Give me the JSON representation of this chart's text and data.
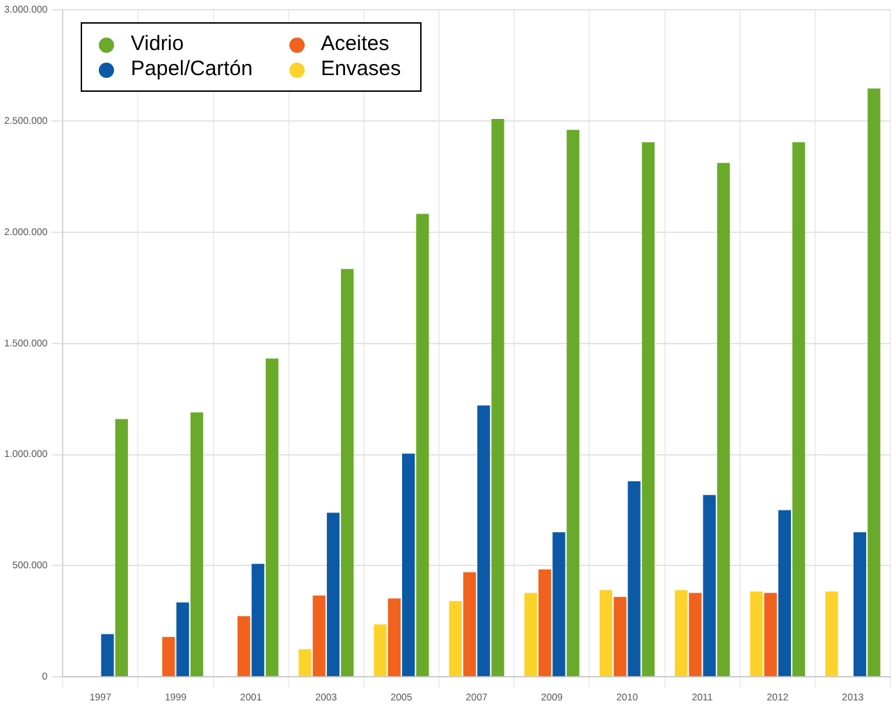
{
  "chart_data": {
    "type": "bar",
    "categories": [
      "1997",
      "1999",
      "2001",
      "2003",
      "2005",
      "2007",
      "2009",
      "2010",
      "2011",
      "2012",
      "2013"
    ],
    "series": [
      {
        "name": "Envases",
        "color": "#fdd22a",
        "values": [
          null,
          null,
          null,
          124000,
          236000,
          341000,
          378000,
          390000,
          390000,
          384000,
          384000
        ]
      },
      {
        "name": "Aceites",
        "color": "#f0621e",
        "values": [
          null,
          180000,
          273000,
          366000,
          353000,
          471000,
          483000,
          360000,
          378000,
          378000,
          null
        ]
      },
      {
        "name": "Papel/Cartón",
        "color": "#0c5aa6",
        "values": [
          192000,
          335000,
          508000,
          738000,
          1004000,
          1221000,
          651000,
          880000,
          818000,
          750000,
          651000
        ]
      },
      {
        "name": "Vidrio",
        "color": "#6aaa2a",
        "values": [
          1160000,
          1190000,
          1432000,
          1835000,
          2083000,
          2510000,
          2461000,
          2405000,
          2312000,
          2405000,
          2647000
        ]
      }
    ],
    "ylim": [
      0,
      3000000
    ],
    "yticks": [
      0,
      {
        "value": 500000,
        "label": "500.000"
      },
      {
        "value": 1000000,
        "label": "1.000.000"
      },
      {
        "value": 1500000,
        "label": "1.500.000"
      },
      {
        "value": 2000000,
        "label": "2.000.000"
      },
      {
        "value": 2500000,
        "label": "2.500.000"
      },
      {
        "value": 3000000,
        "label": "3.000.000"
      }
    ],
    "grid": true,
    "legend": "top left"
  }
}
